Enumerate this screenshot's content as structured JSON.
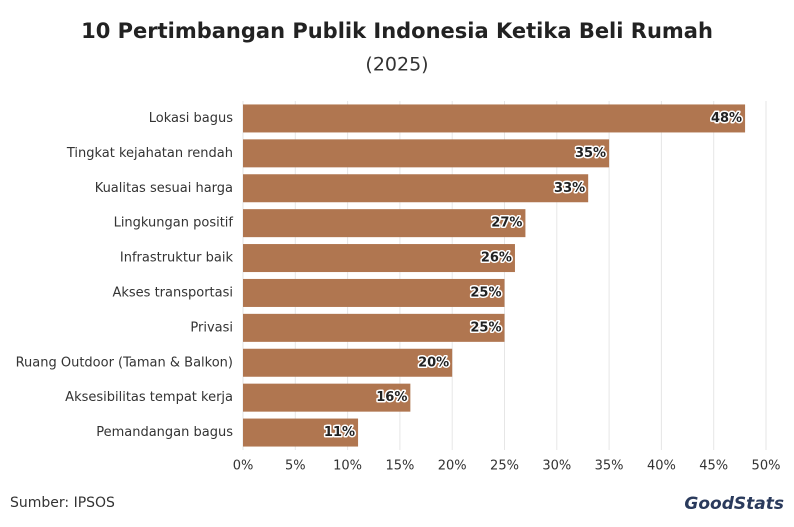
{
  "chart_data": {
    "type": "hbar",
    "title": "10 Pertimbangan Publik Indonesia Ketika Beli Rumah",
    "subtitle": "(2025)",
    "categories": [
      "Lokasi bagus",
      "Tingkat kejahatan rendah",
      "Kualitas sesuai harga",
      "Lingkungan positif",
      "Infrastruktur baik",
      "Akses transportasi",
      "Privasi",
      "Ruang Outdoor (Taman & Balkon)",
      "Aksesibilitas tempat kerja",
      "Pemandangan bagus"
    ],
    "values": [
      48,
      35,
      33,
      27,
      26,
      25,
      25,
      20,
      16,
      11
    ],
    "value_labels": [
      "48%",
      "35%",
      "33%",
      "27%",
      "26%",
      "25%",
      "25%",
      "20%",
      "16%",
      "11%"
    ],
    "color": "#b07650",
    "xlim": [
      0,
      50
    ],
    "xticks": [
      {
        "value": 0,
        "label": "0%"
      },
      {
        "value": 5,
        "label": "5%"
      },
      {
        "value": 10,
        "label": "10%"
      },
      {
        "value": 15,
        "label": "15%"
      },
      {
        "value": 20,
        "label": "20%"
      },
      {
        "value": 25,
        "label": "25%"
      },
      {
        "value": 30,
        "label": "30%"
      },
      {
        "value": 35,
        "label": "35%"
      },
      {
        "value": 40,
        "label": "40%"
      },
      {
        "value": 45,
        "label": "45%"
      },
      {
        "value": 50,
        "label": "50%"
      }
    ],
    "grid": true,
    "source": "Sumber: IPSOS",
    "logo": "GoodStats"
  }
}
